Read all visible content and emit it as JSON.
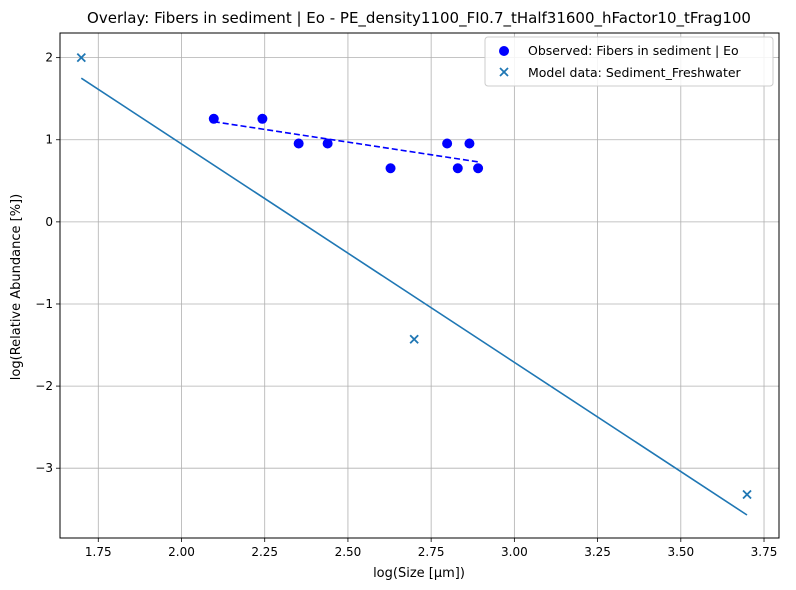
{
  "chart_data": {
    "type": "scatter",
    "title": "Overlay: Fibers in sediment | Eo - PE_density1100_FI0.7_tHalf31600_hFactor10_tFrag100",
    "xlabel": "log(Size [μm])",
    "ylabel": "log(Relative Abundance [%])",
    "xlim": [
      1.635,
      3.795
    ],
    "ylim": [
      -3.85,
      2.3
    ],
    "xticks": [
      1.75,
      2.0,
      2.25,
      2.5,
      2.75,
      3.0,
      3.25,
      3.5,
      3.75
    ],
    "xtick_labels": [
      "1.75",
      "2.00",
      "2.25",
      "2.50",
      "2.75",
      "3.00",
      "3.25",
      "3.50",
      "3.75"
    ],
    "yticks": [
      -3,
      -2,
      -1,
      0,
      1,
      2
    ],
    "ytick_labels": [
      "−3",
      "−2",
      "−1",
      "0",
      "1",
      "2"
    ],
    "grid": true,
    "legend_position": "top-right",
    "series": [
      {
        "name": "Observed: Fibers in sediment | Eo",
        "kind": "scatter",
        "marker": "circle",
        "color": "#0000ff",
        "x": [
          2.097,
          2.243,
          2.352,
          2.439,
          2.628,
          2.798,
          2.83,
          2.865,
          2.891
        ],
        "y": [
          1.255,
          1.255,
          0.954,
          0.954,
          0.653,
          0.954,
          0.653,
          0.954,
          0.653
        ]
      },
      {
        "kind": "fit-line",
        "color": "#0000ff",
        "dash": true,
        "x": [
          2.097,
          2.891
        ],
        "y": [
          1.22,
          0.73
        ]
      },
      {
        "name": "Model data: Sediment_Freshwater",
        "kind": "scatter",
        "marker": "x",
        "color": "#1f77b4",
        "x": [
          1.699,
          2.699,
          3.699
        ],
        "y": [
          2.0,
          -1.43,
          -3.32
        ]
      },
      {
        "kind": "fit-line",
        "color": "#1f77b4",
        "dash": false,
        "x": [
          1.699,
          3.699
        ],
        "y": [
          1.75,
          -3.57
        ]
      }
    ]
  }
}
